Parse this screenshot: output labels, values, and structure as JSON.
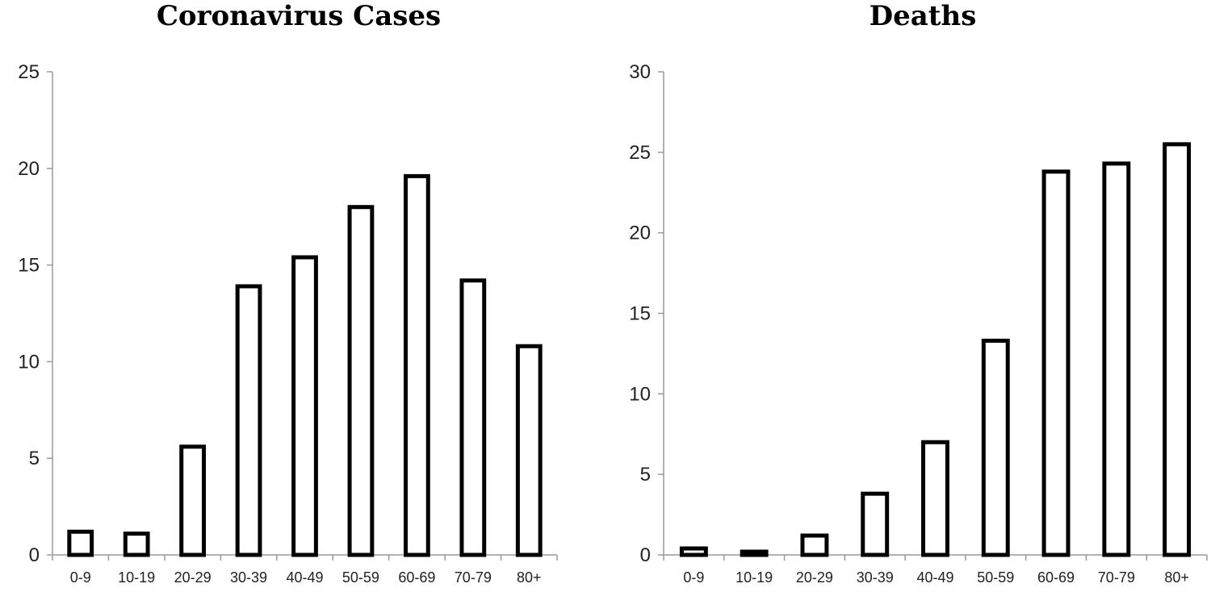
{
  "chart_data": [
    {
      "type": "bar",
      "title": "Coronavirus Cases",
      "categories": [
        "0-9",
        "10-19",
        "20-29",
        "30-39",
        "40-49",
        "50-59",
        "60-69",
        "70-79",
        "80+"
      ],
      "values": [
        1.2,
        1.1,
        5.6,
        13.9,
        15.4,
        18.0,
        19.6,
        14.2,
        10.8
      ],
      "ylim": [
        0,
        25
      ],
      "yticks": [
        "0",
        "5",
        "10",
        "15",
        "20",
        "25"
      ],
      "grid": false,
      "legend": "none"
    },
    {
      "type": "bar",
      "title": "Deaths",
      "categories": [
        "0-9",
        "10-19",
        "20-29",
        "30-39",
        "40-49",
        "50-59",
        "60-69",
        "70-79",
        "80+"
      ],
      "values": [
        0.4,
        0.2,
        1.2,
        3.8,
        7.0,
        13.3,
        23.8,
        24.3,
        25.5
      ],
      "ylim": [
        0,
        30
      ],
      "yticks": [
        "0",
        "5",
        "10",
        "15",
        "20",
        "25",
        "30"
      ],
      "grid": false,
      "legend": "none"
    }
  ]
}
